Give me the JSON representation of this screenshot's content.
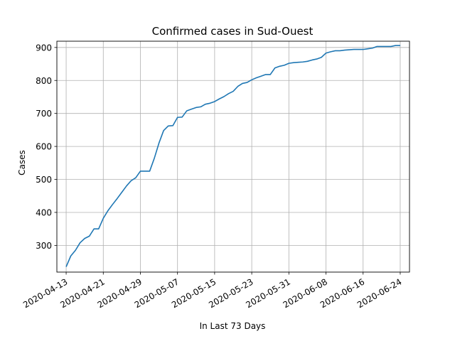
{
  "chart_data": {
    "type": "line",
    "title": "Confirmed cases in Sud-Ouest",
    "xlabel": "In Last 73 Days",
    "ylabel": "Cases",
    "grid": true,
    "legend": "none",
    "color": "#1f77b4",
    "xlim": [
      "2020-04-11",
      "2020-06-26"
    ],
    "ylim": [
      219,
      919
    ],
    "x_ticks": [
      "2020-04-13",
      "2020-04-21",
      "2020-04-29",
      "2020-05-07",
      "2020-05-15",
      "2020-05-23",
      "2020-05-31",
      "2020-06-08",
      "2020-06-16",
      "2020-06-24"
    ],
    "y_ticks": [
      300,
      400,
      500,
      600,
      700,
      800,
      900
    ],
    "series": [
      {
        "x": [
          "2020-04-13",
          "2020-04-14",
          "2020-04-15",
          "2020-04-16",
          "2020-04-17",
          "2020-04-18",
          "2020-04-19",
          "2020-04-20",
          "2020-04-21",
          "2020-04-22",
          "2020-04-23",
          "2020-04-24",
          "2020-04-25",
          "2020-04-26",
          "2020-04-27",
          "2020-04-28",
          "2020-04-29",
          "2020-04-30",
          "2020-05-01",
          "2020-05-02",
          "2020-05-03",
          "2020-05-04",
          "2020-05-05",
          "2020-05-06",
          "2020-05-07",
          "2020-05-08",
          "2020-05-09",
          "2020-05-10",
          "2020-05-11",
          "2020-05-12",
          "2020-05-13",
          "2020-05-14",
          "2020-05-15",
          "2020-05-16",
          "2020-05-17",
          "2020-05-18",
          "2020-05-19",
          "2020-05-20",
          "2020-05-21",
          "2020-05-22",
          "2020-05-23",
          "2020-05-24",
          "2020-05-25",
          "2020-05-26",
          "2020-05-27",
          "2020-05-28",
          "2020-05-29",
          "2020-05-30",
          "2020-05-31",
          "2020-06-01",
          "2020-06-02",
          "2020-06-03",
          "2020-06-04",
          "2020-06-05",
          "2020-06-06",
          "2020-06-07",
          "2020-06-08",
          "2020-06-09",
          "2020-06-10",
          "2020-06-11",
          "2020-06-12",
          "2020-06-13",
          "2020-06-14",
          "2020-06-15",
          "2020-06-16",
          "2020-06-17",
          "2020-06-18",
          "2020-06-19",
          "2020-06-20",
          "2020-06-21",
          "2020-06-22",
          "2020-06-23",
          "2020-06-24"
        ],
        "values": [
          235,
          268,
          285,
          308,
          321,
          328,
          350,
          350,
          382,
          405,
          424,
          442,
          461,
          480,
          496,
          505,
          525,
          525,
          525,
          564,
          610,
          648,
          662,
          663,
          688,
          689,
          708,
          713,
          718,
          720,
          728,
          731,
          736,
          744,
          751,
          760,
          767,
          782,
          791,
          794,
          802,
          808,
          813,
          818,
          818,
          838,
          843,
          846,
          852,
          854,
          855,
          856,
          858,
          862,
          865,
          870,
          883,
          887,
          890,
          890,
          892,
          893,
          894,
          894,
          894,
          896,
          898,
          903,
          903,
          903,
          903,
          906,
          906
        ]
      }
    ]
  }
}
